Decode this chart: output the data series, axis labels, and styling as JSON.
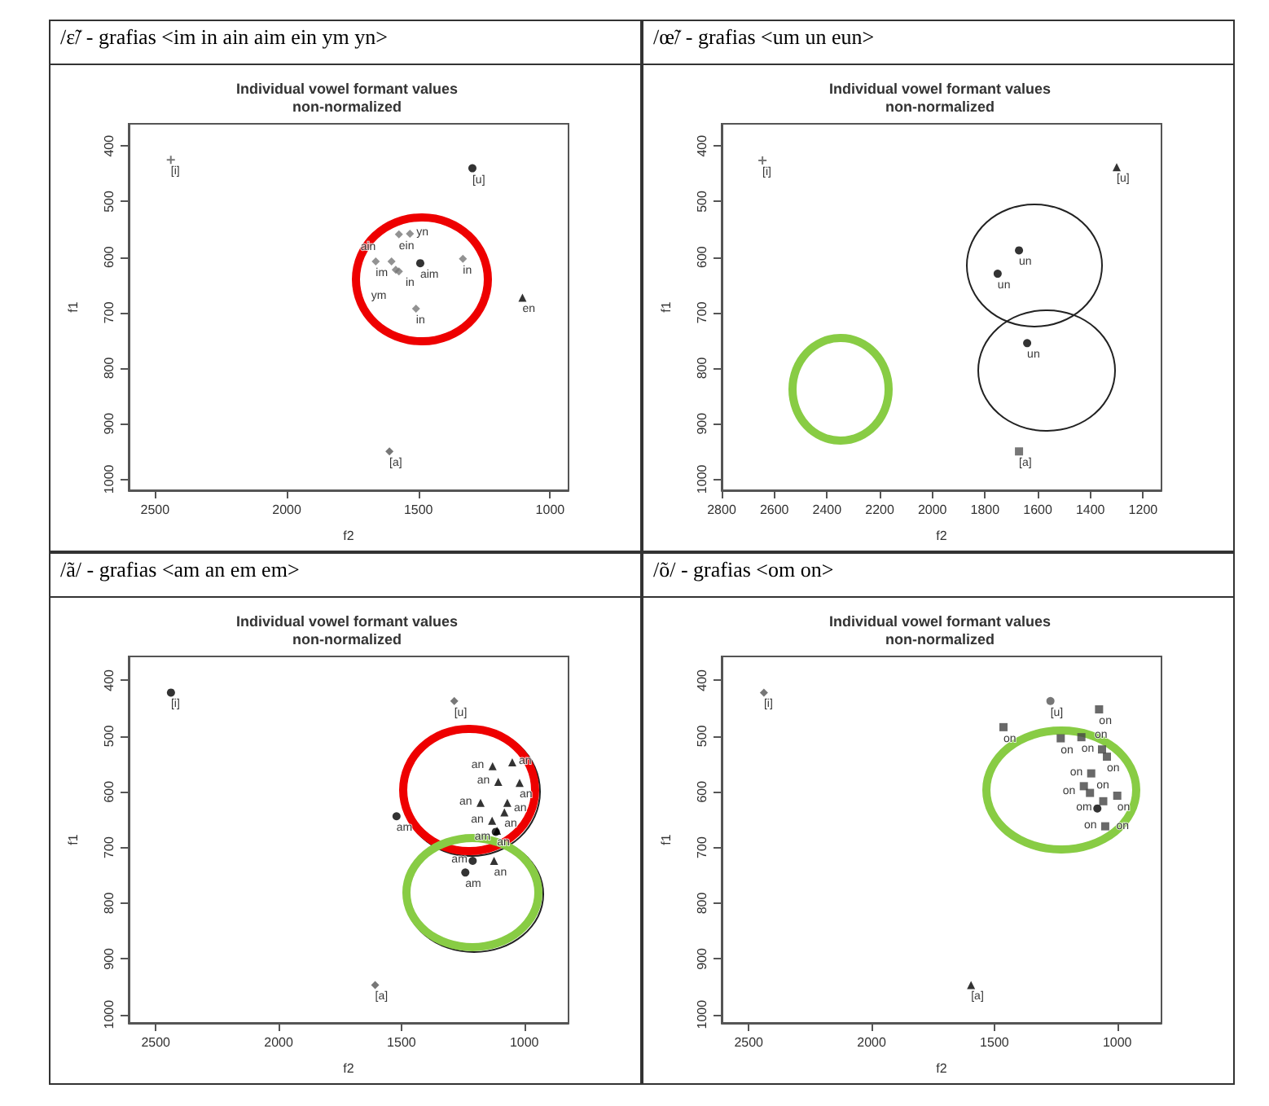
{
  "chart_data": [
    {
      "type": "scatter",
      "title": "/ɛ̃/ - grafias <im in ain aim ein ym yn>",
      "subtitle": "Individual vowel formant values\nnon-normalized",
      "xlabel": "f2",
      "ylabel": "f1",
      "xlim": [
        2600,
        930
      ],
      "ylim": [
        1020,
        360
      ],
      "xticks": [
        2500,
        2000,
        1500,
        1000
      ],
      "yticks": [
        400,
        500,
        600,
        700,
        800,
        900,
        1000
      ],
      "series": [
        {
          "color": "#555555",
          "marker": "cross",
          "x": [
            2440
          ],
          "values": [
            425
          ],
          "value_labels": [
            "[i]"
          ]
        },
        {
          "color": "#000000",
          "marker": "circle",
          "x": [
            1295
          ],
          "values": [
            440
          ],
          "value_labels": [
            "[u]"
          ]
        },
        {
          "color": "#555555",
          "marker": "diamond",
          "x": [
            1610
          ],
          "values": [
            950
          ],
          "value_labels": [
            "[a]"
          ]
        },
        {
          "color": "#000000",
          "marker": "triangle",
          "x": [
            1105
          ],
          "values": [
            673
          ],
          "value_labels": [
            "en"
          ]
        },
        {
          "color": "#000000",
          "marker": "circle",
          "x": [
            1493
          ],
          "values": [
            611
          ],
          "value_labels": [
            "aim"
          ]
        },
        {
          "color": "#777777",
          "marker": "diamond",
          "x": [
            1574,
            1532,
            1331,
            1662,
            1602,
            1586,
            1574,
            1509
          ],
          "values": [
            559,
            558,
            603,
            608,
            608,
            623,
            626,
            693
          ],
          "value_labels": [
            "ein",
            "yn",
            "in",
            "im",
            "ain",
            "in",
            "ym",
            "in"
          ]
        }
      ]
    },
    {
      "type": "scatter",
      "title": "/œ̃/ - grafias <um un eun>",
      "subtitle": "Individual vowel formant values\nnon-normalized",
      "xlabel": "f2",
      "ylabel": "f1",
      "xlim": [
        2800,
        1130
      ],
      "ylim": [
        1020,
        360
      ],
      "xticks": [
        2800,
        2600,
        2400,
        2200,
        2000,
        1800,
        1600,
        1400,
        1200
      ],
      "yticks": [
        400,
        500,
        600,
        700,
        800,
        900,
        1000
      ],
      "series": [
        {
          "color": "#555555",
          "marker": "cross",
          "x": [
            2645
          ],
          "values": [
            426
          ],
          "value_labels": [
            "[i]"
          ]
        },
        {
          "color": "#000000",
          "marker": "triangle",
          "x": [
            1300
          ],
          "values": [
            438
          ],
          "value_labels": [
            "[u]"
          ]
        },
        {
          "color": "#000000",
          "marker": "circle",
          "x": [
            1671,
            1752,
            1640
          ],
          "values": [
            588,
            630,
            755
          ],
          "value_labels": [
            "un",
            "un",
            "un"
          ]
        },
        {
          "color": "#555555",
          "marker": "square",
          "x": [
            1671
          ],
          "values": [
            950
          ],
          "value_labels": [
            "[a]"
          ]
        }
      ]
    },
    {
      "type": "scatter",
      "title": "/ã/ - grafias <am an em em>",
      "subtitle": "Individual vowel formant values\nnon-normalized",
      "xlabel": "f2",
      "ylabel": "f1",
      "xlim": [
        2610,
        820
      ],
      "ylim": [
        1015,
        357
      ],
      "xticks": [
        2500,
        2000,
        1500,
        1000
      ],
      "yticks": [
        400,
        500,
        600,
        700,
        800,
        900,
        1000
      ],
      "series": [
        {
          "color": "#000000",
          "marker": "circle",
          "x": [
            2438
          ],
          "values": [
            422
          ],
          "value_labels": [
            "[i]"
          ]
        },
        {
          "color": "#555555",
          "marker": "diamond",
          "x": [
            1285
          ],
          "values": [
            437
          ],
          "value_labels": [
            "[u]"
          ]
        },
        {
          "color": "#555555",
          "marker": "diamond",
          "x": [
            1607
          ],
          "values": [
            947
          ],
          "value_labels": [
            "[a]"
          ]
        },
        {
          "color": "#000000",
          "marker": "triangle",
          "x": [
            1129,
            1049,
            1106,
            1019,
            1178,
            1069,
            1131,
            1081,
            1111,
            1123
          ],
          "values": [
            554,
            547,
            582,
            584,
            620,
            620,
            652,
            637,
            670,
            724
          ],
          "value_labels": [
            "an",
            "an",
            "an",
            "an",
            "an",
            "an",
            "an",
            "an",
            "an",
            "an"
          ]
        },
        {
          "color": "#000000",
          "marker": "circle",
          "x": [
            1520,
            1240,
            1210,
            1116
          ],
          "values": [
            644,
            745,
            724,
            672
          ],
          "value_labels": [
            "am",
            "am",
            "am",
            "am"
          ]
        }
      ]
    },
    {
      "type": "scatter",
      "title": "/õ/ - grafias <om on>",
      "subtitle": "Individual vowel formant values\nnon-normalized",
      "xlabel": "f2",
      "ylabel": "f1",
      "xlim": [
        2610,
        820
      ],
      "ylim": [
        1015,
        357
      ],
      "xticks": [
        2500,
        2000,
        1500,
        1000
      ],
      "yticks": [
        400,
        500,
        600,
        700,
        800,
        900,
        1000
      ],
      "series": [
        {
          "color": "#555555",
          "marker": "diamond",
          "x": [
            2438
          ],
          "values": [
            422
          ],
          "value_labels": [
            "[i]"
          ]
        },
        {
          "color": "#555555",
          "marker": "circle",
          "x": [
            1272
          ],
          "values": [
            437
          ],
          "value_labels": [
            "[u]"
          ]
        },
        {
          "color": "#000000",
          "marker": "triangle",
          "x": [
            1595
          ],
          "values": [
            947
          ],
          "value_labels": [
            "[a]"
          ]
        },
        {
          "color": "#444444",
          "marker": "square",
          "x": [
            1074,
            1463,
            1230,
            1146,
            1062,
            1042,
            1106,
            1136,
            1111,
            1000,
            1057,
            1049
          ],
          "values": [
            452,
            484,
            504,
            502,
            524,
            537,
            567,
            590,
            602,
            607,
            617,
            662
          ],
          "value_labels": [
            "on",
            "on",
            "on",
            "on",
            "on",
            "on",
            "on",
            "on",
            "on",
            "on",
            "on",
            "on"
          ]
        },
        {
          "color": "#000000",
          "marker": "circle",
          "x": [
            1081
          ],
          "values": [
            630
          ],
          "value_labels": [
            "om"
          ]
        }
      ]
    }
  ]
}
